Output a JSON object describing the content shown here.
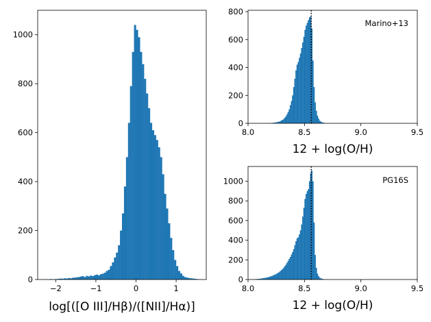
{
  "chart_data": [
    {
      "id": "panel_ratio",
      "type": "bar",
      "title": "",
      "xlabel": "log[([O III]/Hβ)/([NII]/Hα)]",
      "ylabel": "",
      "xlim": [
        -2.45,
        1.75
      ],
      "ylim": [
        0,
        1100
      ],
      "xticks": [
        -2,
        -1,
        0,
        1
      ],
      "yticks": [
        0,
        200,
        400,
        600,
        800,
        1000
      ],
      "grid": false,
      "color": "#1f77b4",
      "bin_width": 0.05,
      "bins_x": [
        -2.25,
        -2.2,
        -2.15,
        -2.1,
        -2.05,
        -2.0,
        -1.95,
        -1.9,
        -1.85,
        -1.8,
        -1.75,
        -1.7,
        -1.65,
        -1.6,
        -1.55,
        -1.5,
        -1.45,
        -1.4,
        -1.35,
        -1.3,
        -1.25,
        -1.2,
        -1.15,
        -1.1,
        -1.05,
        -1.0,
        -0.95,
        -0.9,
        -0.85,
        -0.8,
        -0.75,
        -0.7,
        -0.65,
        -0.6,
        -0.55,
        -0.5,
        -0.45,
        -0.4,
        -0.35,
        -0.3,
        -0.25,
        -0.2,
        -0.15,
        -0.1,
        -0.05,
        0.0,
        0.05,
        0.1,
        0.15,
        0.2,
        0.25,
        0.3,
        0.35,
        0.4,
        0.45,
        0.5,
        0.55,
        0.6,
        0.65,
        0.7,
        0.75,
        0.8,
        0.85,
        0.9,
        0.95,
        1.0,
        1.05,
        1.1,
        1.15,
        1.2,
        1.25,
        1.3,
        1.35,
        1.4,
        1.45,
        1.5,
        1.55
      ],
      "counts": [
        1,
        0,
        2,
        1,
        1,
        2,
        3,
        4,
        3,
        5,
        4,
        6,
        5,
        7,
        8,
        9,
        10,
        12,
        14,
        10,
        15,
        13,
        16,
        14,
        18,
        20,
        17,
        22,
        24,
        28,
        35,
        40,
        55,
        70,
        90,
        110,
        140,
        200,
        270,
        380,
        500,
        640,
        790,
        930,
        1040,
        1020,
        990,
        930,
        880,
        820,
        760,
        700,
        640,
        610,
        590,
        570,
        540,
        500,
        430,
        350,
        290,
        230,
        170,
        120,
        80,
        55,
        35,
        25,
        15,
        10,
        8,
        6,
        5,
        4,
        3,
        2,
        1
      ]
    },
    {
      "id": "panel_marino",
      "type": "bar",
      "title": "",
      "annotation": "Marino+13",
      "xlabel": "12 + log(O/H)",
      "ylabel": "",
      "xlim": [
        8.0,
        9.5
      ],
      "ylim": [
        0,
        810
      ],
      "xticks": [
        "8.0",
        "8.5",
        "9.0",
        "9.5"
      ],
      "yticks": [
        0,
        200,
        400,
        600,
        800
      ],
      "grid": false,
      "color": "#1f77b4",
      "bin_width": 0.01,
      "bins_x": [
        8.18,
        8.19,
        8.2,
        8.21,
        8.22,
        8.23,
        8.24,
        8.25,
        8.26,
        8.27,
        8.28,
        8.29,
        8.3,
        8.31,
        8.32,
        8.33,
        8.34,
        8.35,
        8.36,
        8.37,
        8.38,
        8.39,
        8.4,
        8.41,
        8.42,
        8.43,
        8.44,
        8.45,
        8.46,
        8.47,
        8.48,
        8.49,
        8.5,
        8.51,
        8.52,
        8.53,
        8.54,
        8.55,
        8.56,
        8.57,
        8.58,
        8.59,
        8.6,
        8.61,
        8.62,
        8.63,
        8.64,
        8.65,
        8.66,
        8.67,
        8.68,
        8.69
      ],
      "counts": [
        1,
        1,
        2,
        3,
        4,
        5,
        6,
        8,
        10,
        12,
        15,
        20,
        25,
        30,
        40,
        50,
        65,
        80,
        100,
        130,
        160,
        200,
        260,
        320,
        380,
        420,
        440,
        470,
        500,
        540,
        580,
        620,
        670,
        700,
        720,
        740,
        760,
        765,
        680,
        450,
        260,
        150,
        90,
        55,
        35,
        20,
        12,
        8,
        5,
        3,
        2,
        1
      ],
      "reference_line_x": 8.56
    },
    {
      "id": "panel_pg16s",
      "type": "bar",
      "title": "",
      "annotation": "PG16S",
      "xlabel": "12 + log(O/H)",
      "ylabel": "",
      "xlim": [
        8.0,
        9.5
      ],
      "ylim": [
        0,
        1150
      ],
      "xticks": [
        "8.0",
        "8.5",
        "9.0",
        "9.5"
      ],
      "yticks": [
        0,
        200,
        400,
        600,
        800,
        1000
      ],
      "grid": false,
      "color": "#1f77b4",
      "bin_width": 0.01,
      "bins_x": [
        8.04,
        8.05,
        8.06,
        8.07,
        8.08,
        8.09,
        8.1,
        8.11,
        8.12,
        8.13,
        8.14,
        8.15,
        8.16,
        8.17,
        8.18,
        8.19,
        8.2,
        8.21,
        8.22,
        8.23,
        8.24,
        8.25,
        8.26,
        8.27,
        8.28,
        8.29,
        8.3,
        8.31,
        8.32,
        8.33,
        8.34,
        8.35,
        8.36,
        8.37,
        8.38,
        8.39,
        8.4,
        8.41,
        8.42,
        8.43,
        8.44,
        8.45,
        8.46,
        8.47,
        8.48,
        8.49,
        8.5,
        8.51,
        8.52,
        8.53,
        8.54,
        8.55,
        8.56,
        8.57,
        8.58,
        8.59,
        8.6,
        8.61,
        8.62,
        8.63,
        8.64,
        8.65,
        8.66,
        8.67,
        8.68,
        8.69,
        8.7
      ],
      "counts": [
        2,
        3,
        4,
        5,
        6,
        7,
        8,
        10,
        12,
        14,
        16,
        18,
        20,
        23,
        26,
        30,
        34,
        38,
        43,
        48,
        54,
        60,
        67,
        75,
        85,
        95,
        105,
        120,
        135,
        150,
        170,
        190,
        210,
        230,
        255,
        280,
        310,
        350,
        390,
        420,
        430,
        460,
        500,
        560,
        640,
        730,
        820,
        870,
        900,
        920,
        1000,
        1080,
        1110,
        1000,
        580,
        250,
        120,
        60,
        35,
        20,
        12,
        8,
        5,
        3,
        2,
        1,
        1
      ],
      "reference_line_x": 8.56
    }
  ]
}
